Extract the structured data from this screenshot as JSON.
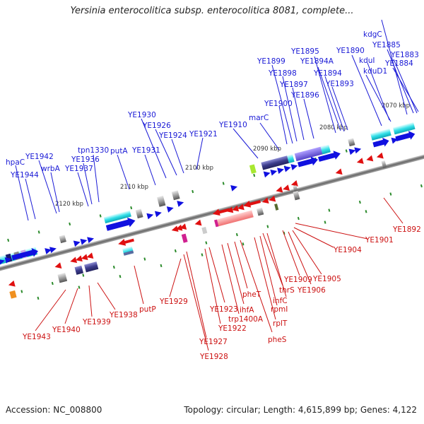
{
  "title": "Yersinia enterocolitica subsp. enterocolitica 8081, complete...",
  "footer": {
    "accession": "Accession: NC_008800",
    "topology": "Topology: circular; Length: 4,615,899 bp; Genes: 4,122"
  },
  "scale_labels": [
    "2070 kbp",
    "2080 kbp",
    "2090 kbp",
    "2100 kbp",
    "2110 kbp",
    "2120 kbp"
  ],
  "labels_top": [
    "kdgC",
    "YE1885",
    "YE1883",
    "YE1884",
    "kduI",
    "kduD1",
    "YE1890",
    "YE1895",
    "YE1894A",
    "YE1899",
    "YE1898",
    "YE1894",
    "YE1897",
    "YE1893",
    "YE1896",
    "YE1900",
    "marC",
    "YE1910",
    "YE1930",
    "YE1926",
    "YE1924",
    "YE1921",
    "putA",
    "YE1931",
    "tpn1330",
    "YE1936",
    "YE1937",
    "YE1942",
    "wrbA",
    "hpaC",
    "YE1944"
  ],
  "labels_bottom": [
    "YE1892",
    "YE1901",
    "YE1904",
    "YE1905",
    "YE1906",
    "YE1909",
    "infC",
    "thrS",
    "rpmI",
    "rplT",
    "pheS",
    "pheT",
    "ihfA",
    "trp1400A",
    "YE1923",
    "YE1922",
    "YE1927",
    "YE1928",
    "YE1929",
    "putP",
    "YE1938",
    "YE1939",
    "YE1940",
    "YE1943"
  ],
  "colors": {
    "forward": "#1010e0",
    "reverse": "#e01010",
    "label_forward": "#1a1ad6",
    "label_reverse": "#cc1111",
    "backbone": "#777777"
  }
}
